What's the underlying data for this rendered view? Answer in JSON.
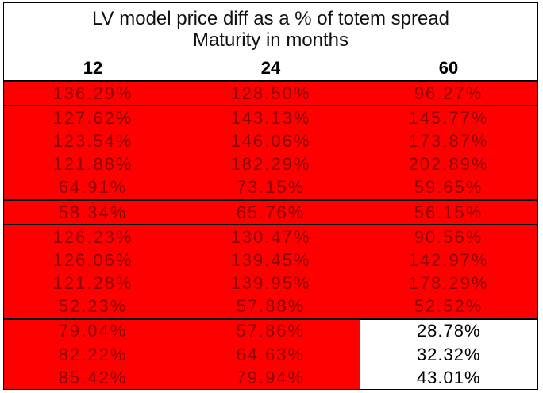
{
  "header": {
    "title_line1": "LV model price diff as a % of totem spread",
    "title_line2": "Maturity in months"
  },
  "columns": [
    "12",
    "24",
    "60"
  ],
  "rows": [
    [
      "136.29%",
      "128.50%",
      "96.27%"
    ],
    [
      "127.62%",
      "143.13%",
      "145.77%"
    ],
    [
      "123.54%",
      "146.06%",
      "173.87%"
    ],
    [
      "121.88%",
      "182.29%",
      "202.89%"
    ],
    [
      "64.91%",
      "73.15%",
      "59.65%"
    ],
    [
      "58.34%",
      "65.76%",
      "56.15%"
    ],
    [
      "126.23%",
      "130.47%",
      "90.56%"
    ],
    [
      "126.06%",
      "139.45%",
      "142.97%"
    ],
    [
      "121.28%",
      "139.95%",
      "178.29%"
    ],
    [
      "52.23%",
      "57.88%",
      "52.52%"
    ],
    [
      "79.04%",
      "57.86%",
      "28.78%"
    ],
    [
      "82.22%",
      "64.63%",
      "32.32%"
    ],
    [
      "85.42%",
      "79.94%",
      "43.01%"
    ]
  ],
  "colors": {
    "highlight_fill": "#ff0000",
    "highlight_text": "#8b0000",
    "plain_fill": "#ffffff",
    "plain_text": "#000000"
  }
}
